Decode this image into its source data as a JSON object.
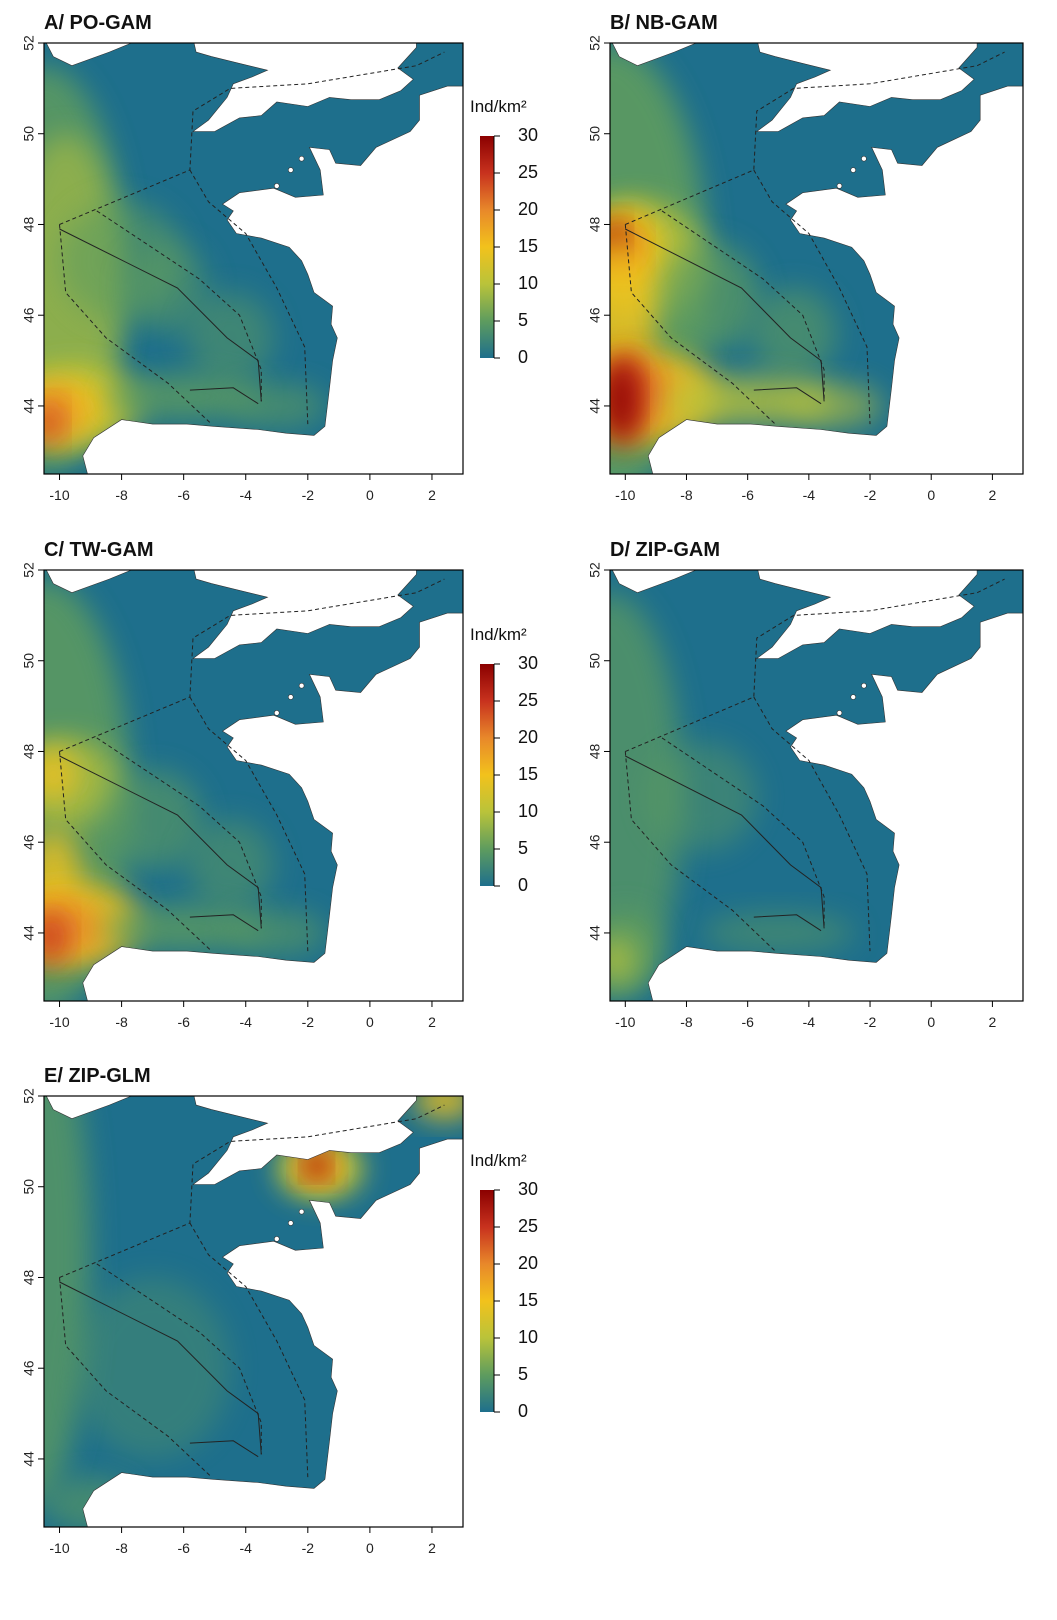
{
  "figure": {
    "panels": [
      {
        "id": "A",
        "title": "A/ PO-GAM",
        "legend": true,
        "pattern": "moderate"
      },
      {
        "id": "B",
        "title": "B/ NB-GAM",
        "legend": false,
        "pattern": "high"
      },
      {
        "id": "C",
        "title": "C/ TW-GAM",
        "legend": true,
        "pattern": "mid"
      },
      {
        "id": "D",
        "title": "D/ ZIP-GAM",
        "legend": false,
        "pattern": "low"
      },
      {
        "id": "E",
        "title": "E/ ZIP-GLM",
        "legend": true,
        "pattern": "glm"
      }
    ],
    "legend": {
      "title": "Ind/km²",
      "labels": [
        "30",
        "25",
        "20",
        "15",
        "10",
        "5",
        "0"
      ],
      "values": [
        30,
        25,
        20,
        15,
        10,
        5,
        0
      ],
      "colors": [
        "#8b0000",
        "#c8321e",
        "#e8882a",
        "#f2c21c",
        "#b9c33a",
        "#5e9c5e",
        "#1e6f8c"
      ]
    },
    "x_axis": {
      "lim": [
        -10.5,
        3
      ],
      "tick_values": [
        -10,
        -8,
        -6,
        -4,
        -2,
        0,
        2
      ],
      "tick_labels": [
        "-10",
        "-8",
        "-6",
        "-4",
        "-2",
        "0",
        "2"
      ]
    },
    "y_axis": {
      "lim": [
        42.5,
        52
      ],
      "tick_values": [
        44,
        46,
        48,
        50,
        52
      ],
      "tick_labels": [
        "44",
        "46",
        "48",
        "50",
        "52"
      ]
    },
    "colors": {
      "ocean_low": "#1e6f8c",
      "land": "#ffffff",
      "boundary": "#222222"
    }
  }
}
